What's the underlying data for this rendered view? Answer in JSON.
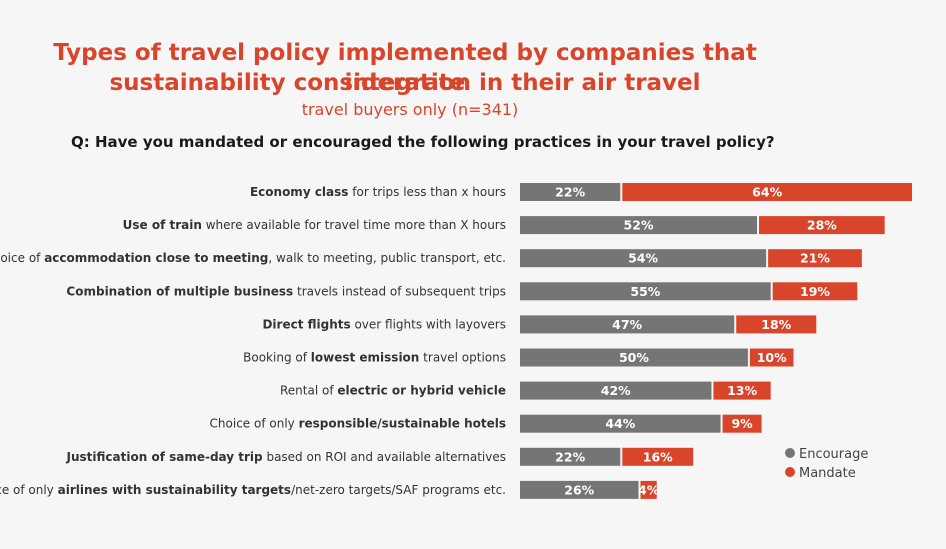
{
  "header": {
    "title_line1": "Types of travel policy implemented by companies that integrate",
    "title_line2": "sustainability consideration in their air travel",
    "subtitle": "travel buyers only (n=341)",
    "question": "Q: Have you mandated or encouraged the following practices in your travel policy?"
  },
  "colors": {
    "encourage": "#767576",
    "mandate": "#d9452b"
  },
  "chart_data": {
    "type": "bar",
    "orientation": "horizontal",
    "stacked": true,
    "xlim": [
      0,
      86
    ],
    "categories": [
      [
        {
          "t": "Economy class",
          "b": true
        },
        {
          "t": " for trips less than x hours",
          "b": false
        }
      ],
      [
        {
          "t": "Use of train",
          "b": true
        },
        {
          "t": " where available for travel time more than X hours",
          "b": false
        }
      ],
      [
        {
          "t": "Choice of ",
          "b": false
        },
        {
          "t": "accommodation close to meeting",
          "b": true
        },
        {
          "t": ", walk to meeting, public transport, etc.",
          "b": false
        }
      ],
      [
        {
          "t": "Combination of multiple business",
          "b": true
        },
        {
          "t": " travels instead of subsequent trips",
          "b": false
        }
      ],
      [
        {
          "t": "Direct flights",
          "b": true
        },
        {
          "t": " over flights with layovers",
          "b": false
        }
      ],
      [
        {
          "t": "Booking of ",
          "b": false
        },
        {
          "t": "lowest emission",
          "b": true
        },
        {
          "t": " travel options",
          "b": false
        }
      ],
      [
        {
          "t": "Rental of ",
          "b": false
        },
        {
          "t": "electric or hybrid vehicle",
          "b": true
        }
      ],
      [
        {
          "t": "Choice of only ",
          "b": false
        },
        {
          "t": "responsible/sustainable hotels",
          "b": true
        }
      ],
      [
        {
          "t": "Justification of same-day trip",
          "b": true
        },
        {
          "t": " based on ROI and available alternatives",
          "b": false
        }
      ],
      [
        {
          "t": "Choice of only ",
          "b": false
        },
        {
          "t": "airlines with sustainability targets",
          "b": true
        },
        {
          "t": "/net-zero targets/SAF programs etc.",
          "b": false
        }
      ]
    ],
    "series": [
      {
        "name": "Encourage",
        "values": [
          22,
          52,
          54,
          55,
          47,
          50,
          42,
          44,
          22,
          26
        ]
      },
      {
        "name": "Mandate",
        "values": [
          64,
          28,
          21,
          19,
          18,
          10,
          13,
          9,
          16,
          4
        ]
      }
    ],
    "value_suffix": "%",
    "legend_position": "bottom-right",
    "grid": false
  }
}
